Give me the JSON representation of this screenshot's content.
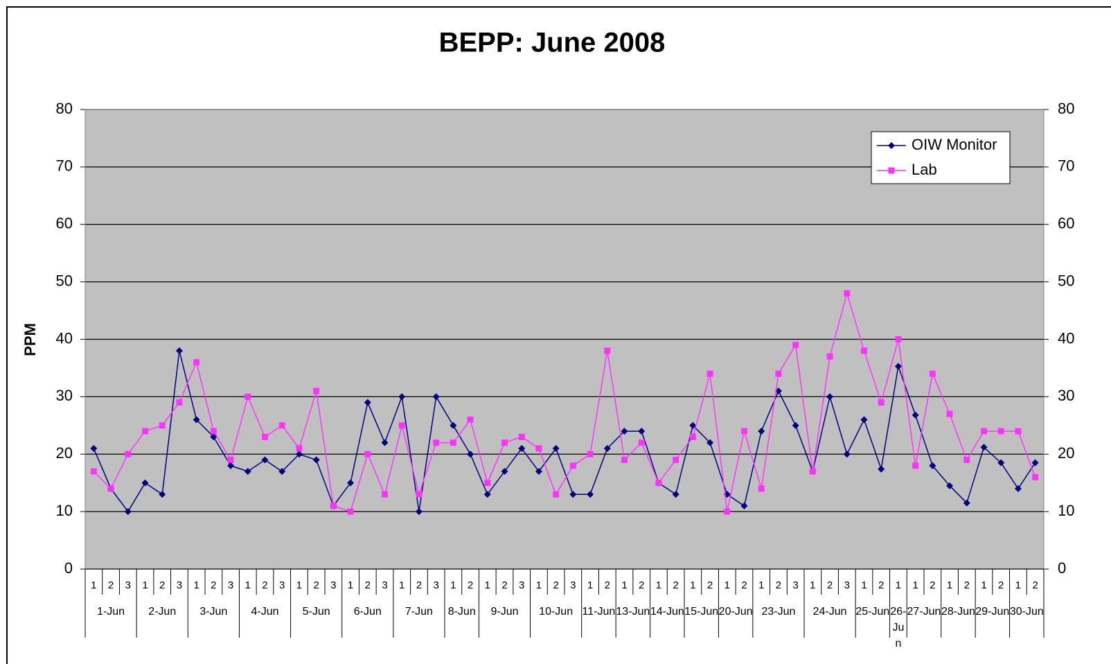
{
  "chart_data": {
    "type": "line",
    "title": "BEPP: June 2008",
    "y_label": "PPM",
    "groups": [
      {
        "label": "1-Jun",
        "categories": [
          "1",
          "2",
          "3"
        ]
      },
      {
        "label": "2-Jun",
        "categories": [
          "1",
          "2",
          "3"
        ]
      },
      {
        "label": "3-Jun",
        "categories": [
          "1",
          "2",
          "3"
        ]
      },
      {
        "label": "4-Jun",
        "categories": [
          "1",
          "2",
          "3"
        ]
      },
      {
        "label": "5-Jun",
        "categories": [
          "1",
          "2",
          "3"
        ]
      },
      {
        "label": "6-Jun",
        "categories": [
          "1",
          "2",
          "3"
        ]
      },
      {
        "label": "7-Jun",
        "categories": [
          "1",
          "2",
          "3"
        ]
      },
      {
        "label": "8-Jun",
        "categories": [
          "1",
          "2"
        ]
      },
      {
        "label": "9-Jun",
        "categories": [
          "1",
          "2",
          "3"
        ]
      },
      {
        "label": "10-Jun",
        "categories": [
          "1",
          "2",
          "3"
        ]
      },
      {
        "label": "11-Jun",
        "categories": [
          "1",
          "2"
        ]
      },
      {
        "label": "13-Jun",
        "categories": [
          "1",
          "2"
        ]
      },
      {
        "label": "14-Jun",
        "categories": [
          "1",
          "2"
        ]
      },
      {
        "label": "15-Jun",
        "categories": [
          "1",
          "2"
        ]
      },
      {
        "label": "20-Jun",
        "categories": [
          "1",
          "2"
        ]
      },
      {
        "label": "23-Jun",
        "categories": [
          "1",
          "2",
          "3"
        ]
      },
      {
        "label": "24-Jun",
        "categories": [
          "1",
          "2",
          "3"
        ]
      },
      {
        "label": "25-Jun",
        "categories": [
          "1",
          "2"
        ]
      },
      {
        "label": "26-Jun",
        "categories": [
          "1"
        ]
      },
      {
        "label": "27-Jun",
        "categories": [
          "1",
          "2"
        ]
      },
      {
        "label": "28-Jun",
        "categories": [
          "1",
          "2"
        ]
      },
      {
        "label": "29-Jun",
        "categories": [
          "1",
          "2"
        ]
      },
      {
        "label": "30-Jun",
        "categories": [
          "1",
          "2"
        ]
      }
    ],
    "series": [
      {
        "name": "OIW Monitor",
        "color": "#000080",
        "marker": "diamond",
        "values": [
          21,
          14,
          10,
          15,
          13,
          38,
          26,
          23,
          18,
          17,
          19,
          17,
          20,
          19,
          11,
          15,
          29,
          22,
          30,
          10,
          30,
          25,
          20,
          13,
          17,
          21,
          17,
          21,
          13,
          13,
          21,
          24,
          24,
          15,
          13,
          25,
          22,
          13,
          11,
          24,
          31,
          25,
          17,
          30,
          20,
          26,
          17.4,
          35.3,
          26.8,
          18,
          14.5,
          11.5,
          21.2,
          18.5,
          14,
          18.5
        ]
      },
      {
        "name": "Lab",
        "color": "#ff33ff",
        "marker": "square",
        "values": [
          17,
          14,
          20,
          24,
          25,
          29,
          36,
          24,
          19,
          30,
          23,
          25,
          21,
          31,
          11,
          10,
          20,
          13,
          25,
          13,
          22,
          22,
          26,
          15,
          22,
          23,
          21,
          13,
          18,
          20,
          38,
          19,
          22,
          15,
          19,
          23,
          34,
          10,
          24,
          14,
          34,
          39,
          17,
          37,
          48,
          38,
          29,
          40,
          18,
          34,
          27,
          19,
          24,
          24,
          24,
          16
        ]
      }
    ],
    "ylim": [
      0,
      80
    ],
    "yticks": [
      0,
      10,
      20,
      30,
      40,
      50,
      60,
      70,
      80
    ],
    "y2lim": [
      0,
      80
    ],
    "y2ticks": [
      0,
      10,
      20,
      30,
      40,
      50,
      60,
      70,
      80
    ],
    "grid": true,
    "legend": "top-right",
    "plot_background": "#c0c0c0"
  }
}
